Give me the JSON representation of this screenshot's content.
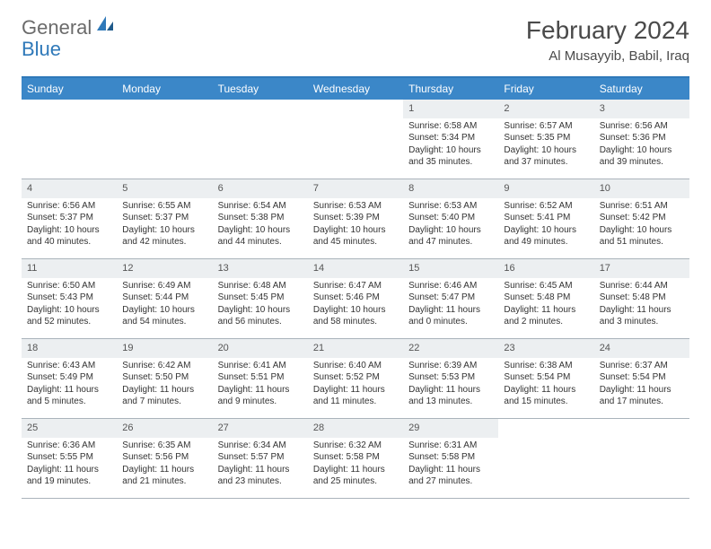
{
  "logo": {
    "general": "General",
    "blue": "Blue"
  },
  "title": "February 2024",
  "location": "Al Musayyib, Babil, Iraq",
  "colors": {
    "header_bg": "#3b87c8",
    "header_border_top": "#2f79b9",
    "daynum_bg": "#eceff1",
    "row_border": "#aab3bb",
    "text": "#333333",
    "logo_gray": "#6b6b6b",
    "logo_blue": "#2f79b9"
  },
  "day_names": [
    "Sunday",
    "Monday",
    "Tuesday",
    "Wednesday",
    "Thursday",
    "Friday",
    "Saturday"
  ],
  "weeks": [
    [
      null,
      null,
      null,
      null,
      {
        "n": "1",
        "sr": "Sunrise: 6:58 AM",
        "ss": "Sunset: 5:34 PM",
        "dl": "Daylight: 10 hours and 35 minutes."
      },
      {
        "n": "2",
        "sr": "Sunrise: 6:57 AM",
        "ss": "Sunset: 5:35 PM",
        "dl": "Daylight: 10 hours and 37 minutes."
      },
      {
        "n": "3",
        "sr": "Sunrise: 6:56 AM",
        "ss": "Sunset: 5:36 PM",
        "dl": "Daylight: 10 hours and 39 minutes."
      }
    ],
    [
      {
        "n": "4",
        "sr": "Sunrise: 6:56 AM",
        "ss": "Sunset: 5:37 PM",
        "dl": "Daylight: 10 hours and 40 minutes."
      },
      {
        "n": "5",
        "sr": "Sunrise: 6:55 AM",
        "ss": "Sunset: 5:37 PM",
        "dl": "Daylight: 10 hours and 42 minutes."
      },
      {
        "n": "6",
        "sr": "Sunrise: 6:54 AM",
        "ss": "Sunset: 5:38 PM",
        "dl": "Daylight: 10 hours and 44 minutes."
      },
      {
        "n": "7",
        "sr": "Sunrise: 6:53 AM",
        "ss": "Sunset: 5:39 PM",
        "dl": "Daylight: 10 hours and 45 minutes."
      },
      {
        "n": "8",
        "sr": "Sunrise: 6:53 AM",
        "ss": "Sunset: 5:40 PM",
        "dl": "Daylight: 10 hours and 47 minutes."
      },
      {
        "n": "9",
        "sr": "Sunrise: 6:52 AM",
        "ss": "Sunset: 5:41 PM",
        "dl": "Daylight: 10 hours and 49 minutes."
      },
      {
        "n": "10",
        "sr": "Sunrise: 6:51 AM",
        "ss": "Sunset: 5:42 PM",
        "dl": "Daylight: 10 hours and 51 minutes."
      }
    ],
    [
      {
        "n": "11",
        "sr": "Sunrise: 6:50 AM",
        "ss": "Sunset: 5:43 PM",
        "dl": "Daylight: 10 hours and 52 minutes."
      },
      {
        "n": "12",
        "sr": "Sunrise: 6:49 AM",
        "ss": "Sunset: 5:44 PM",
        "dl": "Daylight: 10 hours and 54 minutes."
      },
      {
        "n": "13",
        "sr": "Sunrise: 6:48 AM",
        "ss": "Sunset: 5:45 PM",
        "dl": "Daylight: 10 hours and 56 minutes."
      },
      {
        "n": "14",
        "sr": "Sunrise: 6:47 AM",
        "ss": "Sunset: 5:46 PM",
        "dl": "Daylight: 10 hours and 58 minutes."
      },
      {
        "n": "15",
        "sr": "Sunrise: 6:46 AM",
        "ss": "Sunset: 5:47 PM",
        "dl": "Daylight: 11 hours and 0 minutes."
      },
      {
        "n": "16",
        "sr": "Sunrise: 6:45 AM",
        "ss": "Sunset: 5:48 PM",
        "dl": "Daylight: 11 hours and 2 minutes."
      },
      {
        "n": "17",
        "sr": "Sunrise: 6:44 AM",
        "ss": "Sunset: 5:48 PM",
        "dl": "Daylight: 11 hours and 3 minutes."
      }
    ],
    [
      {
        "n": "18",
        "sr": "Sunrise: 6:43 AM",
        "ss": "Sunset: 5:49 PM",
        "dl": "Daylight: 11 hours and 5 minutes."
      },
      {
        "n": "19",
        "sr": "Sunrise: 6:42 AM",
        "ss": "Sunset: 5:50 PM",
        "dl": "Daylight: 11 hours and 7 minutes."
      },
      {
        "n": "20",
        "sr": "Sunrise: 6:41 AM",
        "ss": "Sunset: 5:51 PM",
        "dl": "Daylight: 11 hours and 9 minutes."
      },
      {
        "n": "21",
        "sr": "Sunrise: 6:40 AM",
        "ss": "Sunset: 5:52 PM",
        "dl": "Daylight: 11 hours and 11 minutes."
      },
      {
        "n": "22",
        "sr": "Sunrise: 6:39 AM",
        "ss": "Sunset: 5:53 PM",
        "dl": "Daylight: 11 hours and 13 minutes."
      },
      {
        "n": "23",
        "sr": "Sunrise: 6:38 AM",
        "ss": "Sunset: 5:54 PM",
        "dl": "Daylight: 11 hours and 15 minutes."
      },
      {
        "n": "24",
        "sr": "Sunrise: 6:37 AM",
        "ss": "Sunset: 5:54 PM",
        "dl": "Daylight: 11 hours and 17 minutes."
      }
    ],
    [
      {
        "n": "25",
        "sr": "Sunrise: 6:36 AM",
        "ss": "Sunset: 5:55 PM",
        "dl": "Daylight: 11 hours and 19 minutes."
      },
      {
        "n": "26",
        "sr": "Sunrise: 6:35 AM",
        "ss": "Sunset: 5:56 PM",
        "dl": "Daylight: 11 hours and 21 minutes."
      },
      {
        "n": "27",
        "sr": "Sunrise: 6:34 AM",
        "ss": "Sunset: 5:57 PM",
        "dl": "Daylight: 11 hours and 23 minutes."
      },
      {
        "n": "28",
        "sr": "Sunrise: 6:32 AM",
        "ss": "Sunset: 5:58 PM",
        "dl": "Daylight: 11 hours and 25 minutes."
      },
      {
        "n": "29",
        "sr": "Sunrise: 6:31 AM",
        "ss": "Sunset: 5:58 PM",
        "dl": "Daylight: 11 hours and 27 minutes."
      },
      null,
      null
    ]
  ]
}
